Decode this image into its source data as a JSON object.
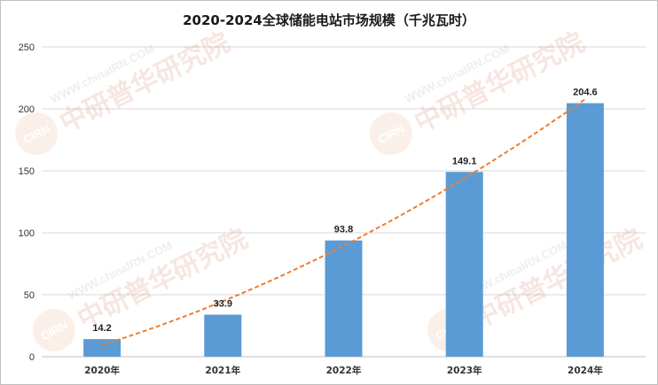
{
  "chart_data": {
    "type": "bar",
    "title": "2020-2024全球储能电站市场规模（千兆瓦时）",
    "categories": [
      "2020年",
      "2021年",
      "2022年",
      "2023年",
      "2024年"
    ],
    "values": [
      14.2,
      33.9,
      93.8,
      149.1,
      204.6
    ],
    "data_labels": [
      "14.2",
      "33.9",
      "93.8",
      "149.1",
      "204.6"
    ],
    "ylim": [
      0,
      250
    ],
    "yticks": [
      "0",
      "50",
      "100",
      "150",
      "200",
      "250"
    ],
    "grid": true,
    "legend": "none",
    "trendline": "polynomial",
    "colors": {
      "bar": "#5b9bd5",
      "trend": "#ed7d31",
      "grid": "#d9d9d9"
    }
  },
  "watermark": {
    "logo": "CIRN",
    "text": "中研普华研究院",
    "url": "WWW.chinaIRN.COM"
  }
}
